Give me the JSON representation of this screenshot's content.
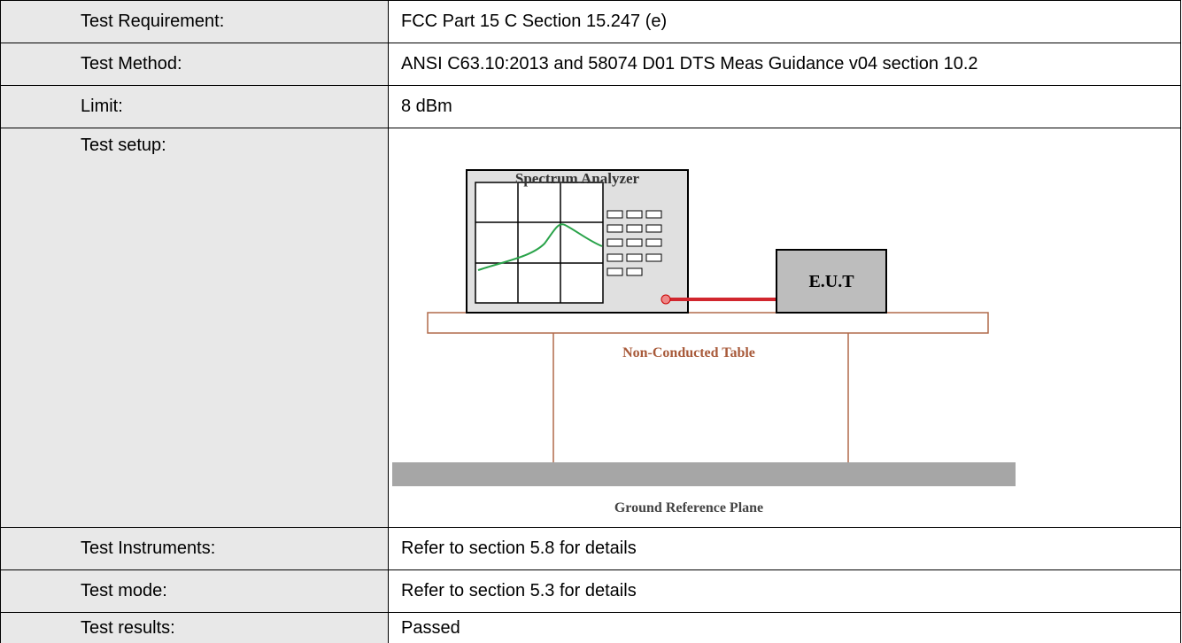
{
  "table": {
    "rows": [
      [
        "Test Requirement:",
        "FCC Part 15 C Section 15.247 (e)"
      ],
      [
        "Test Method:",
        "ANSI C63.10:2013 and 58074 D01 DTS Meas Guidance v04 section 10.2"
      ],
      [
        "Limit:",
        "8 dBm"
      ],
      [
        "Test setup:"
      ],
      [
        "Test Instruments:",
        "Refer to section 5.8 for details"
      ],
      [
        "Test mode:",
        "Refer to section 5.3 for details"
      ],
      [
        "Test results:",
        "Passed"
      ]
    ]
  },
  "diagram": {
    "analyzer": "Spectrum Analyzer",
    "eut": "E.U.T",
    "table": "Non-Conducted Table",
    "ground": "Ground Reference Plane"
  }
}
